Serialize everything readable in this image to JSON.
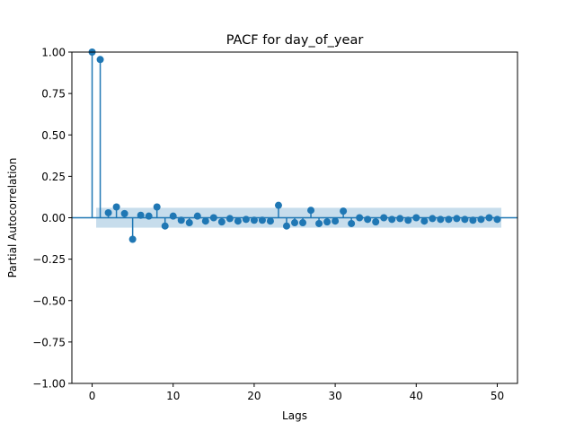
{
  "chart_data": {
    "type": "stem",
    "title": "PACF for day_of_year",
    "xlabel": "Lags",
    "ylabel": "Partial Autocorrelation",
    "xlim": [
      -2.5,
      52.5
    ],
    "ylim": [
      -1.0,
      1.0
    ],
    "xticks": [
      0,
      10,
      20,
      30,
      40,
      50
    ],
    "xtick_labels": [
      "0",
      "10",
      "20",
      "30",
      "40",
      "50"
    ],
    "yticks": [
      -1.0,
      -0.75,
      -0.5,
      -0.25,
      0.0,
      0.25,
      0.5,
      0.75,
      1.0
    ],
    "ytick_labels": [
      "−1.00",
      "−0.75",
      "−0.50",
      "−0.25",
      "0.00",
      "0.25",
      "0.50",
      "0.75",
      "1.00"
    ],
    "grid": false,
    "series": [
      {
        "lags": [
          0,
          1,
          2,
          3,
          4,
          5,
          6,
          7,
          8,
          9,
          10,
          11,
          12,
          13,
          14,
          15,
          16,
          17,
          18,
          19,
          20,
          21,
          22,
          23,
          24,
          25,
          26,
          27,
          28,
          29,
          30,
          31,
          32,
          33,
          34,
          35,
          36,
          37,
          38,
          39,
          40,
          41,
          42,
          43,
          44,
          45,
          46,
          47,
          48,
          49,
          50
        ],
        "values": [
          1.0,
          0.955,
          0.03,
          0.065,
          0.025,
          -0.13,
          0.015,
          0.01,
          0.065,
          -0.05,
          0.01,
          -0.015,
          -0.03,
          0.01,
          -0.02,
          0.0,
          -0.025,
          -0.005,
          -0.02,
          -0.01,
          -0.015,
          -0.015,
          -0.02,
          0.075,
          -0.05,
          -0.03,
          -0.03,
          0.045,
          -0.035,
          -0.025,
          -0.02,
          0.04,
          -0.035,
          0.0,
          -0.01,
          -0.025,
          0.0,
          -0.01,
          -0.005,
          -0.015,
          0.0,
          -0.02,
          -0.005,
          -0.01,
          -0.01,
          -0.005,
          -0.01,
          -0.015,
          -0.01,
          0.0,
          -0.01
        ]
      }
    ],
    "confidence_band": {
      "lower": -0.06,
      "upper": 0.06,
      "from_lag": 0.5,
      "to_lag": 50.5
    },
    "colors": {
      "stem": "#1f77b4",
      "band": "#1f77b4",
      "zero_line": "#1f77b4"
    }
  }
}
